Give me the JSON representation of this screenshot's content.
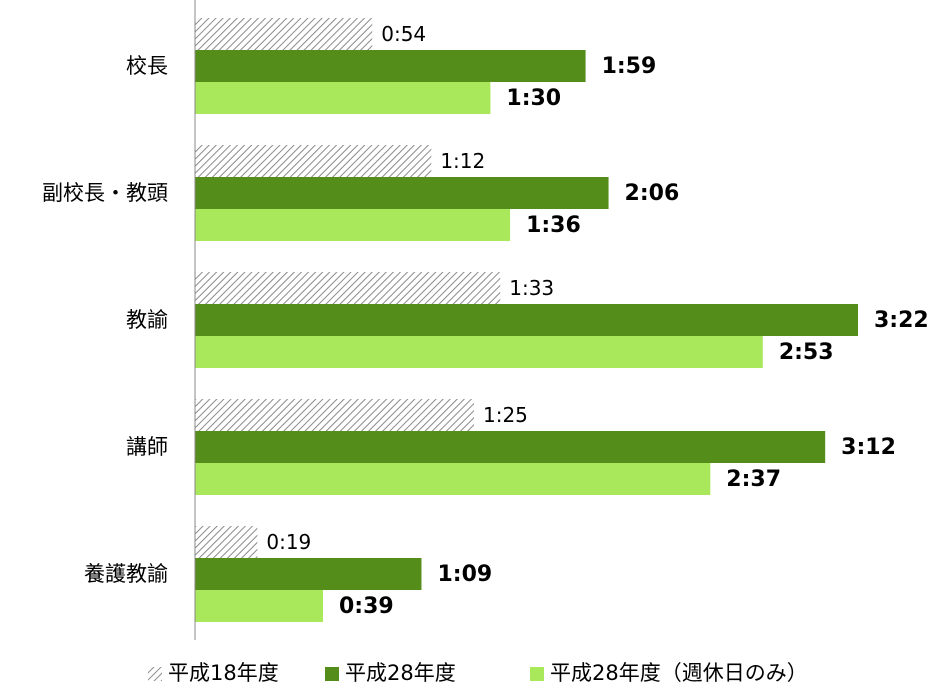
{
  "chart_data": {
    "type": "bar",
    "orientation": "horizontal",
    "categories": [
      "校長",
      "副校長・教頭",
      "教諭",
      "講師",
      "養護教諭"
    ],
    "series": [
      {
        "name": "平成18年度",
        "values": [
          54,
          72,
          93,
          85,
          19
        ],
        "labels": [
          "0:54",
          "1:12",
          "1:33",
          "1:25",
          "0:19"
        ],
        "color": "#999999",
        "pattern": "hatched"
      },
      {
        "name": "平成28年度",
        "values": [
          119,
          126,
          202,
          192,
          69
        ],
        "labels": [
          "1:59",
          "2:06",
          "3:22",
          "3:12",
          "1:09"
        ],
        "color": "#548d1a"
      },
      {
        "name": "平成28年度（週休日のみ）",
        "values": [
          90,
          96,
          173,
          157,
          39
        ],
        "labels": [
          "1:30",
          "1:36",
          "2:53",
          "2:37",
          "0:39"
        ],
        "color": "#a9e85a"
      }
    ],
    "xlim": [
      0,
      240
    ],
    "legend_position": "bottom",
    "grid": false
  }
}
